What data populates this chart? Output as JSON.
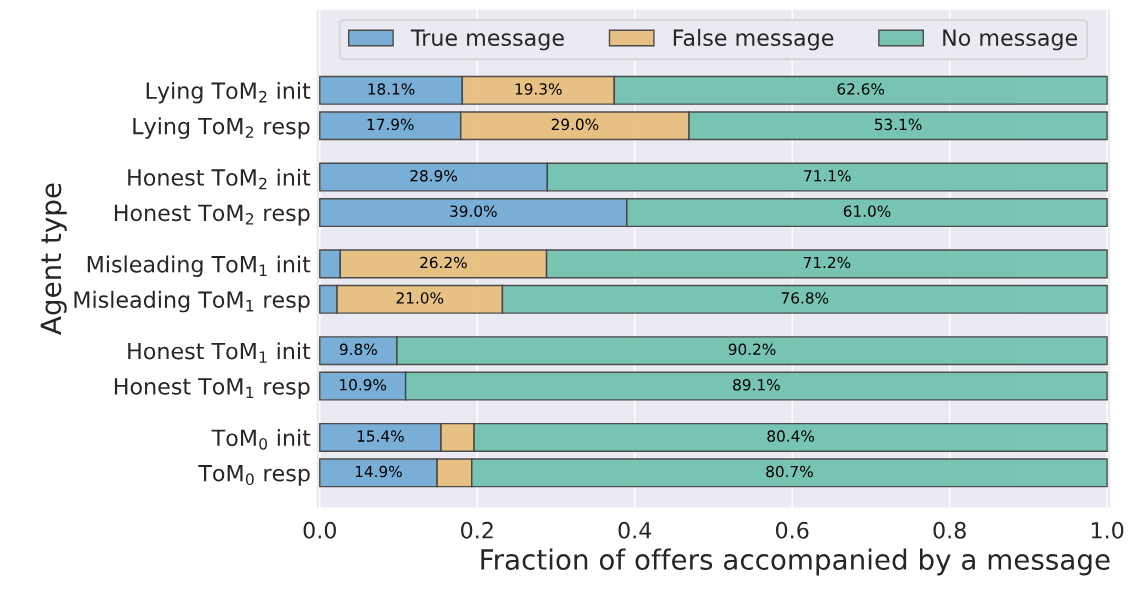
{
  "chart_data": {
    "type": "bar",
    "orientation": "horizontal",
    "stacked": true,
    "ylabel": "Agent type",
    "xlabel": "Fraction of offers accompanied by a message",
    "categories": [
      "Lying ToM$_{2}$ init",
      "Lying ToM$_{2}$ resp",
      "Honest ToM$_{2}$ init",
      "Honest ToM$_{2}$ resp",
      "Misleading ToM$_{1}$ init",
      "Misleading ToM$_{1}$ resp",
      "Honest ToM$_{1}$ init",
      "Honest ToM$_{1}$ resp",
      "ToM$_{0}$ init",
      "ToM$_{0}$ resp"
    ],
    "series": [
      {
        "name": "True message",
        "color": "#74acd5",
        "values": [
          0.181,
          0.179,
          0.289,
          0.39,
          0.026,
          0.022,
          0.098,
          0.109,
          0.154,
          0.149
        ],
        "value_labels": [
          "18.1%",
          "17.9%",
          "28.9%",
          "39.0%",
          null,
          null,
          "9.8%",
          "10.9%",
          "15.4%",
          "14.9%"
        ]
      },
      {
        "name": "False message",
        "color": "#e6bf7e",
        "values": [
          0.193,
          0.29,
          null,
          null,
          0.262,
          0.21,
          null,
          null,
          0.042,
          0.044
        ],
        "value_labels": [
          "19.3%",
          "29.0%",
          null,
          null,
          "26.2%",
          "21.0%",
          null,
          null,
          null,
          null
        ]
      },
      {
        "name": "No message",
        "color": "#72c3b0",
        "values": [
          0.626,
          0.531,
          0.711,
          0.61,
          0.712,
          0.768,
          0.902,
          0.891,
          0.804,
          0.807
        ],
        "value_labels": [
          "62.6%",
          "53.1%",
          "71.1%",
          "61.0%",
          "71.2%",
          "76.8%",
          "90.2%",
          "89.1%",
          "80.4%",
          "80.7%"
        ]
      }
    ],
    "xlim": [
      -0.005,
      1.005
    ],
    "xticks": [
      {
        "value": 0,
        "label": "0.0"
      },
      0.2,
      0.4,
      0.6,
      0.8,
      {
        "value": 1,
        "label": "1.0"
      }
    ],
    "grid": "x",
    "legend": "top"
  }
}
